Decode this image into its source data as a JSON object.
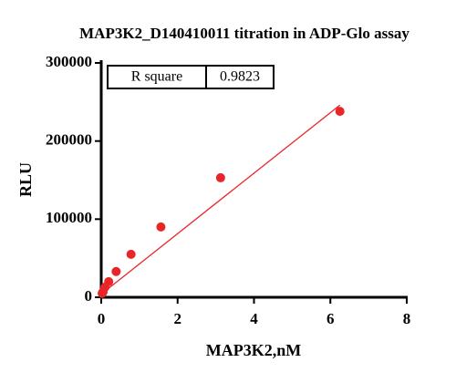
{
  "chart_data": {
    "type": "scatter",
    "title": "MAP3K2_D140410011 titration in ADP-Glo assay",
    "x_label": "MAP3K2,nM",
    "y_label": "RLU",
    "x": [
      0.024,
      0.049,
      0.098,
      0.195,
      0.39,
      0.78,
      1.5625,
      3.125,
      6.25
    ],
    "values": [
      5000,
      7000,
      13000,
      20000,
      33000,
      55000,
      90000,
      153000,
      238000
    ],
    "color": "#e8262a",
    "fit": {
      "x": [
        0,
        6.25
      ],
      "values": [
        4000,
        246000
      ],
      "color": "#e8262a"
    },
    "annotation": {
      "label": "R square",
      "value": 0.9823
    },
    "xlim": [
      0,
      8
    ],
    "xticks": [
      0,
      2,
      4,
      6,
      8
    ],
    "ylim": [
      0,
      300000
    ],
    "yticks": [
      0,
      100000,
      200000,
      300000
    ],
    "grid": false
  }
}
